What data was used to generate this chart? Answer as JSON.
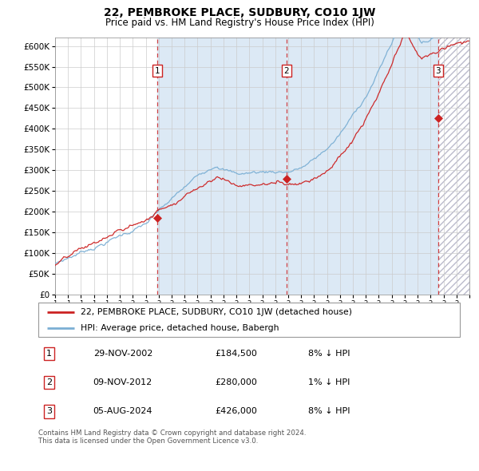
{
  "title": "22, PEMBROKE PLACE, SUDBURY, CO10 1JW",
  "subtitle": "Price paid vs. HM Land Registry's House Price Index (HPI)",
  "x_start_year": 1995,
  "x_end_year": 2027,
  "y_min": 0,
  "y_max": 620000,
  "y_ticks": [
    0,
    50000,
    100000,
    150000,
    200000,
    250000,
    300000,
    350000,
    400000,
    450000,
    500000,
    550000,
    600000
  ],
  "y_tick_labels": [
    "£0",
    "£50K",
    "£100K",
    "£150K",
    "£200K",
    "£250K",
    "£300K",
    "£350K",
    "£400K",
    "£450K",
    "£500K",
    "£550K",
    "£600K"
  ],
  "hpi_color": "#7bafd4",
  "price_color": "#cc2222",
  "marker_color": "#cc2222",
  "dashed_line_color": "#cc2222",
  "bg_shaded_color": "#dce9f5",
  "grid_color": "#cccccc",
  "transactions": [
    {
      "number": 1,
      "date": "29-NOV-2002",
      "price": 184500,
      "year_float": 2002.91,
      "label": "8% ↓ HPI"
    },
    {
      "number": 2,
      "date": "09-NOV-2012",
      "price": 280000,
      "year_float": 2012.86,
      "label": "1% ↓ HPI"
    },
    {
      "number": 3,
      "date": "05-AUG-2024",
      "price": 426000,
      "year_float": 2024.59,
      "label": "8% ↓ HPI"
    }
  ],
  "legend_line1": "22, PEMBROKE PLACE, SUDBURY, CO10 1JW (detached house)",
  "legend_line2": "HPI: Average price, detached house, Babergh",
  "footnote": "Contains HM Land Registry data © Crown copyright and database right 2024.\nThis data is licensed under the Open Government Licence v3.0.",
  "table_rows": [
    [
      "1",
      "29-NOV-2002",
      "£184,500",
      "8% ↓ HPI"
    ],
    [
      "2",
      "09-NOV-2012",
      "£280,000",
      "1% ↓ HPI"
    ],
    [
      "3",
      "05-AUG-2024",
      "£426,000",
      "8% ↓ HPI"
    ]
  ]
}
